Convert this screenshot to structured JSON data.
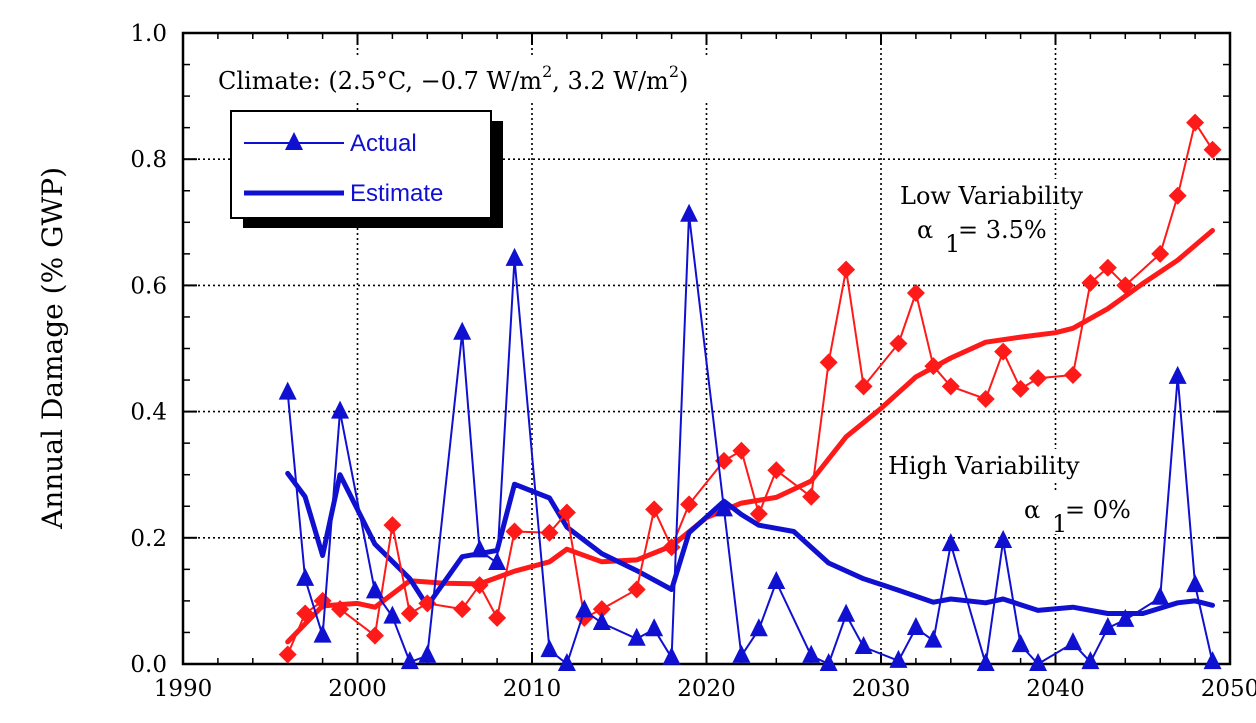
{
  "chart_data": {
    "type": "line",
    "title": "",
    "xlabel": "",
    "ylabel": "Annual Damage (% GWP)",
    "xlim": [
      1990,
      2050
    ],
    "ylim": [
      0.0,
      1.0
    ],
    "x_ticks": [
      "1990",
      "2000",
      "2010",
      "2020",
      "2030",
      "2040",
      "2050"
    ],
    "y_ticks": [
      "0.0",
      "0.2",
      "0.4",
      "0.6",
      "0.8",
      "1.0"
    ],
    "grid": true,
    "legend_position": "top-left",
    "legend": {
      "actual_label": "Actual",
      "estimate_label": "Estimate"
    },
    "annotations": {
      "climate_prefix": "Climate: (2.5°C, −0.7 W/m",
      "climate_sup1": "2",
      "climate_mid": ", 3.2 W/m",
      "climate_sup2": "2",
      "climate_suffix": ")",
      "low_variability": "Low Variability",
      "low_alpha": "= 3.5%",
      "high_variability": "High Variability",
      "high_alpha": "= 0%",
      "alpha_symbol": "α",
      "alpha_subscript": "1"
    },
    "colors": {
      "low_variability": "#ff1a1a",
      "high_variability": "#1010d0"
    },
    "series": [
      {
        "group": "Low Variability",
        "kind": "actual",
        "x": [
          1996,
          1997,
          1998,
          1999,
          2001,
          2002,
          2003,
          2004,
          2006,
          2007,
          2008,
          2009,
          2011,
          2012,
          2013,
          2014,
          2016,
          2017,
          2018,
          2019,
          2021,
          2022,
          2023,
          2024,
          2026,
          2027,
          2028,
          2029,
          2031,
          2032,
          2033,
          2034,
          2036,
          2037,
          2038,
          2039,
          2041,
          2042,
          2043,
          2044,
          2046,
          2047,
          2048,
          2049
        ],
        "y": [
          0.015,
          0.08,
          0.1,
          0.087,
          0.045,
          0.22,
          0.08,
          0.096,
          0.087,
          0.125,
          0.073,
          0.21,
          0.208,
          0.24,
          0.073,
          0.087,
          0.118,
          0.245,
          0.185,
          0.253,
          0.322,
          0.338,
          0.238,
          0.307,
          0.265,
          0.478,
          0.625,
          0.44,
          0.508,
          0.588,
          0.472,
          0.44,
          0.42,
          0.495,
          0.436,
          0.453,
          0.458,
          0.604,
          0.628,
          0.6,
          0.65,
          0.742,
          0.858,
          0.815
        ]
      },
      {
        "group": "Low Variability",
        "kind": "estimate",
        "x": [
          1996,
          1998,
          2000,
          2001,
          2003,
          2005,
          2007,
          2009,
          2011,
          2012,
          2014,
          2016,
          2018,
          2020,
          2022,
          2024,
          2026,
          2028,
          2030,
          2032,
          2034,
          2036,
          2038,
          2040,
          2041,
          2043,
          2045,
          2047,
          2049
        ],
        "y": [
          0.035,
          0.092,
          0.096,
          0.09,
          0.132,
          0.128,
          0.127,
          0.147,
          0.162,
          0.182,
          0.162,
          0.165,
          0.187,
          0.232,
          0.255,
          0.264,
          0.29,
          0.36,
          0.405,
          0.455,
          0.485,
          0.51,
          0.518,
          0.525,
          0.532,
          0.563,
          0.603,
          0.64,
          0.687
        ]
      },
      {
        "group": "High Variability",
        "kind": "actual",
        "x": [
          1996,
          1997,
          1998,
          1999,
          2001,
          2002,
          2003,
          2004,
          2006,
          2007,
          2008,
          2009,
          2011,
          2012,
          2013,
          2014,
          2016,
          2017,
          2018,
          2019,
          2021,
          2022,
          2023,
          2024,
          2026,
          2027,
          2028,
          2029,
          2031,
          2032,
          2033,
          2034,
          2036,
          2037,
          2038,
          2039,
          2041,
          2042,
          2043,
          2044,
          2046,
          2047,
          2048,
          2049
        ],
        "y": [
          0.43,
          0.135,
          0.045,
          0.4,
          0.115,
          0.075,
          0.003,
          0.013,
          0.525,
          0.18,
          0.16,
          0.642,
          0.022,
          0.0,
          0.085,
          0.065,
          0.04,
          0.055,
          0.01,
          0.712,
          0.245,
          0.013,
          0.055,
          0.13,
          0.013,
          0.0,
          0.078,
          0.027,
          0.005,
          0.057,
          0.037,
          0.19,
          0.0,
          0.195,
          0.03,
          0.0,
          0.033,
          0.003,
          0.057,
          0.07,
          0.105,
          0.455,
          0.125,
          0.003
        ]
      },
      {
        "group": "High Variability",
        "kind": "estimate",
        "x": [
          1996,
          1997,
          1998,
          1999,
          2001,
          2003,
          2004,
          2006,
          2008,
          2009,
          2011,
          2012,
          2014,
          2016,
          2018,
          2019,
          2021,
          2022,
          2023,
          2025,
          2027,
          2029,
          2031,
          2033,
          2034,
          2036,
          2037,
          2039,
          2041,
          2043,
          2045,
          2047,
          2048,
          2049
        ],
        "y": [
          0.302,
          0.265,
          0.172,
          0.3,
          0.19,
          0.135,
          0.092,
          0.17,
          0.18,
          0.285,
          0.263,
          0.217,
          0.175,
          0.148,
          0.118,
          0.208,
          0.258,
          0.237,
          0.22,
          0.21,
          0.16,
          0.135,
          0.117,
          0.098,
          0.103,
          0.097,
          0.103,
          0.085,
          0.09,
          0.08,
          0.08,
          0.097,
          0.1,
          0.093
        ]
      }
    ]
  }
}
